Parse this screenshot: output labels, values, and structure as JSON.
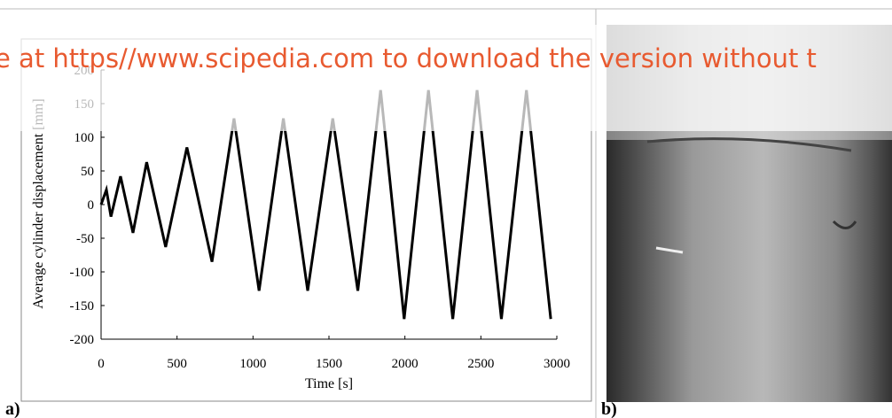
{
  "chart_data": {
    "type": "line",
    "y_label": "Average cylinder displacement [mm]",
    "x_label": "Time [s]",
    "x": [
      0,
      35,
      65,
      128,
      210,
      300,
      425,
      565,
      730,
      875,
      1040,
      1200,
      1360,
      1525,
      1690,
      1840,
      1995,
      2155,
      2315,
      2475,
      2635,
      2800,
      2960
    ],
    "series": [
      {
        "color": "#000000",
        "values": [
          0,
          22,
          -18,
          42,
          -42,
          63,
          -63,
          85,
          -85,
          128,
          -128,
          128,
          -128,
          128,
          -128,
          170,
          -170,
          170,
          -170,
          170,
          -170,
          170,
          -170
        ]
      }
    ],
    "xlim": [
      0,
      3000
    ],
    "xticks": [
      0,
      500,
      1000,
      1500,
      2000,
      2500,
      3000
    ],
    "ylim": [
      -200,
      200
    ],
    "yticks": [
      -200,
      -150,
      -100,
      -50,
      0,
      50,
      100,
      150,
      200
    ],
    "grid": false
  },
  "panel_labels": [
    "a)",
    "b)"
  ],
  "watermark": "e at https//www.scipedia.com to download the version without t"
}
